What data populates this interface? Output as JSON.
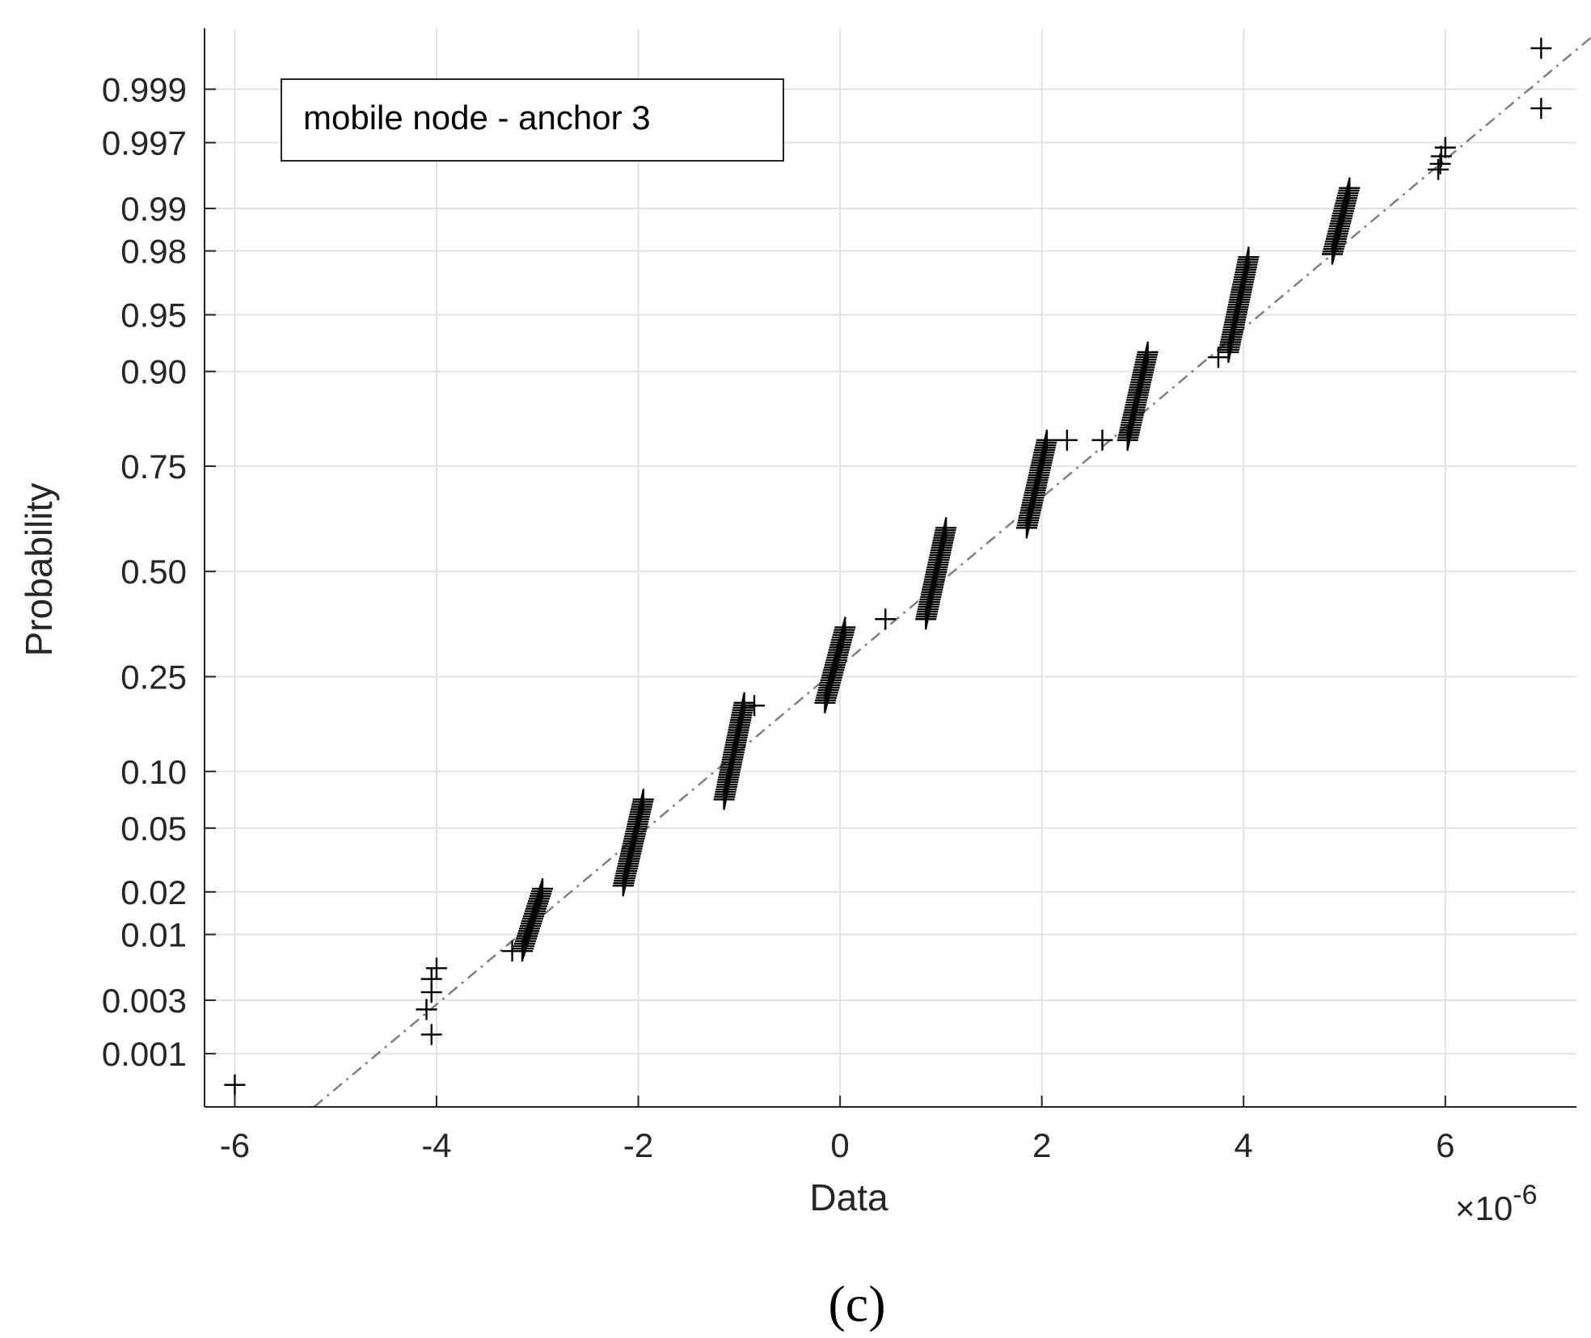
{
  "chart_data": {
    "type": "scatter",
    "subtype": "normal probability plot",
    "xlabel": "Data",
    "ylabel": "Probability",
    "x_exponent_label": "×10",
    "x_exponent_sup": "-6",
    "xlim": [
      -6.3,
      7.3
    ],
    "x_ticks": [
      -6,
      -4,
      -2,
      0,
      2,
      4,
      6
    ],
    "x_tick_labels": [
      "-6",
      "-4",
      "-2",
      "0",
      "2",
      "4",
      "6"
    ],
    "y_ticks": [
      0.001,
      0.003,
      0.01,
      0.02,
      0.05,
      0.1,
      0.25,
      0.5,
      0.75,
      0.9,
      0.95,
      0.98,
      0.99,
      0.997,
      0.999
    ],
    "y_tick_labels": [
      "0.001",
      "0.003",
      "0.01",
      "0.02",
      "0.05",
      "0.10",
      "0.25",
      "0.50",
      "0.75",
      "0.90",
      "0.95",
      "0.98",
      "0.99",
      "0.997",
      "0.999"
    ],
    "grid": true,
    "legend": {
      "text": "mobile node - anchor 3",
      "placement": "top-left"
    },
    "caption": "(c)",
    "marker": "+",
    "marker_color": "#000000",
    "reference_line": {
      "style": "dash-dot",
      "color": "#7f7f7f",
      "points": [
        [
          -1.0,
          0.125
        ],
        [
          3.0,
          0.845
        ]
      ]
    },
    "series": [
      {
        "type": "isolated",
        "points": [
          [
            -6.0,
            0.0005
          ],
          [
            -4.05,
            0.0015
          ],
          [
            -4.1,
            0.0025
          ],
          [
            -4.05,
            0.0035
          ],
          [
            -4.05,
            0.0045
          ],
          [
            -4.0,
            0.0055
          ],
          [
            -3.25,
            0.0075
          ],
          [
            -0.85,
            0.195
          ],
          [
            0.45,
            0.38
          ],
          [
            2.25,
            0.8
          ],
          [
            2.6,
            0.8
          ],
          [
            3.75,
            0.915
          ],
          [
            5.93,
            0.995
          ],
          [
            5.95,
            0.9955
          ],
          [
            5.96,
            0.9961
          ],
          [
            6.0,
            0.9967
          ],
          [
            6.95,
            0.9985
          ],
          [
            6.95,
            0.9996
          ]
        ]
      },
      {
        "type": "cluster",
        "x_range": [
          -3.15,
          -2.95
        ],
        "p_range": [
          0.0075,
          0.021
        ]
      },
      {
        "type": "cluster",
        "x_range": [
          -2.15,
          -1.95
        ],
        "p_range": [
          0.022,
          0.072
        ]
      },
      {
        "type": "cluster",
        "x_range": [
          -1.15,
          -0.95
        ],
        "p_range": [
          0.072,
          0.2
        ]
      },
      {
        "type": "cluster",
        "x_range": [
          -0.15,
          0.05
        ],
        "p_range": [
          0.2,
          0.36
        ]
      },
      {
        "type": "cluster",
        "x_range": [
          0.85,
          1.05
        ],
        "p_range": [
          0.38,
          0.61
        ]
      },
      {
        "type": "cluster",
        "x_range": [
          1.85,
          2.05
        ],
        "p_range": [
          0.61,
          0.8
        ]
      },
      {
        "type": "cluster",
        "x_range": [
          2.85,
          3.05
        ],
        "p_range": [
          0.8,
          0.92
        ]
      },
      {
        "type": "cluster",
        "x_range": [
          3.85,
          4.05
        ],
        "p_range": [
          0.92,
          0.978
        ]
      },
      {
        "type": "cluster",
        "x_range": [
          4.88,
          5.05
        ],
        "p_range": [
          0.979,
          0.993
        ]
      }
    ]
  }
}
